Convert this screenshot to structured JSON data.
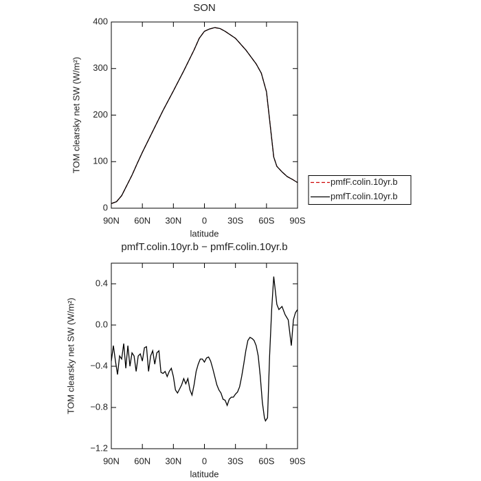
{
  "chart_data": [
    {
      "type": "line",
      "title": "SON",
      "xlabel": "latitude",
      "ylabel": "TOM clearsky net SW (W/m²)",
      "x": [
        90,
        85,
        80,
        75,
        70,
        65,
        60,
        50,
        40,
        30,
        20,
        10,
        5,
        0,
        -5,
        -10,
        -15,
        -20,
        -30,
        -40,
        -50,
        -55,
        -60,
        -63,
        -65,
        -67,
        -70,
        -75,
        -80,
        -85,
        -90
      ],
      "series": [
        {
          "name": "pmfF.colin.10yr.b",
          "color": "#cc0000",
          "dashed": true,
          "values": [
            10,
            14,
            27,
            49,
            71,
            96,
            120,
            165,
            210,
            252,
            295,
            340,
            365,
            380,
            385,
            388,
            386,
            380,
            365,
            340,
            310,
            290,
            250,
            190,
            150,
            110,
            90,
            78,
            68,
            62,
            55
          ]
        },
        {
          "name": "pmfT.colin.10yr.b",
          "color": "#000000",
          "dashed": false,
          "values": [
            10,
            14,
            27,
            49,
            71,
            96,
            120,
            165,
            210,
            252,
            295,
            340,
            365,
            380,
            385,
            388,
            386,
            380,
            365,
            340,
            310,
            290,
            250,
            190,
            150,
            110,
            90,
            78,
            68,
            62,
            55
          ]
        }
      ],
      "xlim": [
        90,
        -90
      ],
      "xticks": [
        {
          "value": 90,
          "label": "90N"
        },
        {
          "value": 60,
          "label": "60N"
        },
        {
          "value": 30,
          "label": "30N"
        },
        0,
        {
          "value": -30,
          "label": "30S"
        },
        {
          "value": -60,
          "label": "60S"
        },
        {
          "value": -90,
          "label": "90S"
        }
      ],
      "ylim": [
        0,
        400
      ],
      "yticks": [
        0,
        100,
        200,
        300,
        400
      ],
      "legend": "right"
    },
    {
      "type": "line",
      "title": "pmfT.colin.10yr.b − pmfF.colin.10yr.b",
      "xlabel": "latitude",
      "ylabel": "TOM clearsky net SW (W/m²)",
      "x": [
        90,
        88,
        86,
        84,
        82,
        80,
        78,
        76,
        74,
        72,
        70,
        68,
        66,
        64,
        62,
        60,
        58,
        56,
        54,
        52,
        50,
        48,
        46,
        44,
        42,
        40,
        38,
        36,
        34,
        32,
        30,
        28,
        26,
        24,
        22,
        20,
        18,
        16,
        14,
        12,
        10,
        8,
        6,
        4,
        2,
        0,
        -2,
        -4,
        -6,
        -8,
        -10,
        -12,
        -14,
        -16,
        -18,
        -20,
        -22,
        -24,
        -26,
        -28,
        -30,
        -32,
        -34,
        -36,
        -38,
        -40,
        -42,
        -44,
        -46,
        -48,
        -50,
        -52,
        -54,
        -56,
        -58,
        -59,
        -61,
        -63,
        -65,
        -67,
        -70,
        -72,
        -75,
        -78,
        -81,
        -84,
        -86,
        -88,
        -90
      ],
      "values": [
        -0.35,
        -0.2,
        -0.35,
        -0.48,
        -0.3,
        -0.33,
        -0.18,
        -0.42,
        -0.2,
        -0.4,
        -0.27,
        -0.3,
        -0.45,
        -0.3,
        -0.28,
        -0.35,
        -0.22,
        -0.21,
        -0.45,
        -0.3,
        -0.25,
        -0.38,
        -0.27,
        -0.25,
        -0.46,
        -0.47,
        -0.45,
        -0.5,
        -0.45,
        -0.42,
        -0.5,
        -0.63,
        -0.66,
        -0.62,
        -0.58,
        -0.52,
        -0.57,
        -0.52,
        -0.63,
        -0.68,
        -0.58,
        -0.45,
        -0.38,
        -0.33,
        -0.33,
        -0.36,
        -0.32,
        -0.31,
        -0.35,
        -0.42,
        -0.5,
        -0.58,
        -0.63,
        -0.66,
        -0.72,
        -0.73,
        -0.78,
        -0.72,
        -0.7,
        -0.7,
        -0.67,
        -0.65,
        -0.6,
        -0.5,
        -0.38,
        -0.25,
        -0.15,
        -0.12,
        -0.13,
        -0.15,
        -0.2,
        -0.3,
        -0.5,
        -0.75,
        -0.9,
        -0.93,
        -0.9,
        -0.3,
        0.15,
        0.47,
        0.2,
        0.15,
        0.18,
        0.1,
        0.05,
        -0.2,
        0.05,
        0.12,
        0.15
      ],
      "color": "#000000",
      "xlim": [
        90,
        -90
      ],
      "xticks": [
        {
          "value": 90,
          "label": "90N"
        },
        {
          "value": 60,
          "label": "60N"
        },
        {
          "value": 30,
          "label": "30N"
        },
        0,
        {
          "value": -30,
          "label": "30S"
        },
        {
          "value": -60,
          "label": "60S"
        },
        {
          "value": -90,
          "label": "90S"
        }
      ],
      "ylim": [
        -1.2,
        0.6
      ],
      "yticks": [
        {
          "value": -1.2,
          "label": "−1.2"
        },
        {
          "value": -0.8,
          "label": "−0.8"
        },
        {
          "value": -0.4,
          "label": "−0.4"
        },
        {
          "value": 0,
          "label": "0.0"
        },
        0.4
      ]
    }
  ]
}
